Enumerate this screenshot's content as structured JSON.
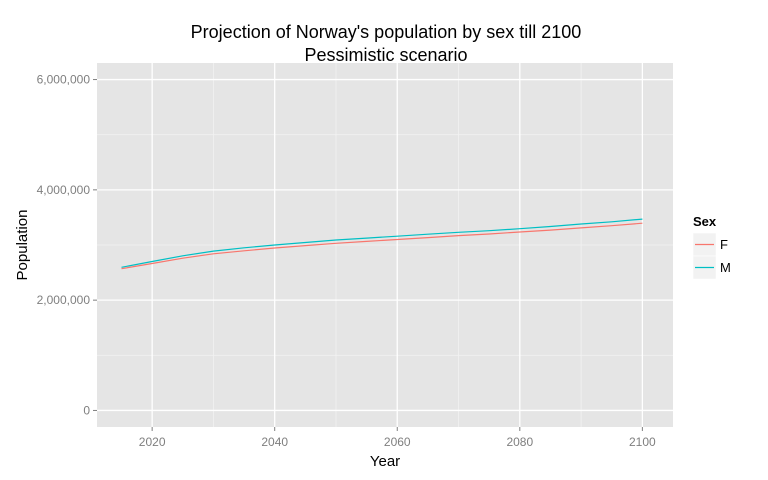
{
  "chart_data": {
    "type": "line",
    "title": "Projection of Norway's population by sex till 2100",
    "subtitle": "Pessimistic scenario",
    "xlabel": "Year",
    "ylabel": "Population",
    "xlim": [
      2011,
      2105
    ],
    "ylim": [
      -300000,
      6300000
    ],
    "x_ticks": [
      2020,
      2040,
      2060,
      2080,
      2100
    ],
    "x_tick_labels": [
      "2020",
      "2040",
      "2060",
      "2080",
      "2100"
    ],
    "y_ticks": [
      0,
      2000000,
      4000000,
      6000000
    ],
    "y_tick_labels": [
      "0",
      "2,000,000",
      "4,000,000",
      "6,000,000"
    ],
    "grid": true,
    "legend": {
      "title": "Sex",
      "position": "right"
    },
    "x": [
      2015,
      2020,
      2025,
      2030,
      2035,
      2040,
      2045,
      2050,
      2055,
      2060,
      2065,
      2070,
      2075,
      2080,
      2085,
      2090,
      2095,
      2100
    ],
    "series": [
      {
        "name": "F",
        "color": "#F8766D",
        "values": [
          2570000,
          2665000,
          2760000,
          2840000,
          2895000,
          2945000,
          2990000,
          3030000,
          3065000,
          3100000,
          3135000,
          3170000,
          3200000,
          3235000,
          3270000,
          3310000,
          3350000,
          3395000
        ]
      },
      {
        "name": "M",
        "color": "#00BFC4",
        "values": [
          2595000,
          2700000,
          2805000,
          2890000,
          2950000,
          3000000,
          3045000,
          3090000,
          3125000,
          3160000,
          3195000,
          3230000,
          3260000,
          3295000,
          3335000,
          3380000,
          3420000,
          3470000
        ]
      }
    ]
  }
}
